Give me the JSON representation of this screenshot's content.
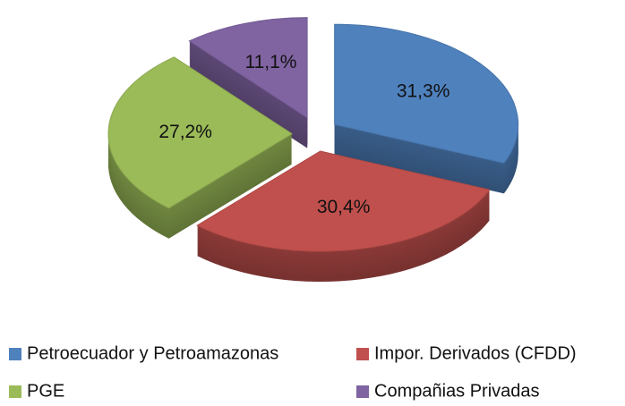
{
  "chart_data": {
    "type": "pie",
    "categories": [
      "Petroecuador y Petroamazonas",
      "Impor. Derivados (CFDD)",
      "PGE",
      "Compañias Privadas"
    ],
    "values": [
      31.3,
      30.4,
      27.2,
      11.1
    ],
    "value_labels": [
      "31,3%",
      "30,4%",
      "27,2%",
      "11,1%"
    ],
    "colors": [
      "#4f81bd",
      "#c0504d",
      "#9bbb59",
      "#8064a2"
    ],
    "legend": "bottom"
  }
}
